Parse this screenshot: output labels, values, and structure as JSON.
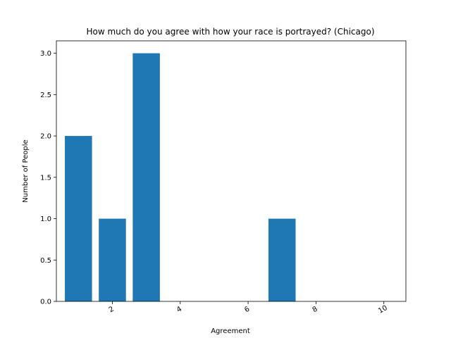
{
  "chart_data": {
    "type": "bar",
    "title": "How much do you agree with how your race is portrayed? (Chicago)",
    "xlabel": "Agreement",
    "ylabel": "Number of People",
    "x": [
      1,
      2,
      3,
      7
    ],
    "values": [
      2,
      1,
      3,
      1
    ],
    "xlim": [
      0.35,
      10.65
    ],
    "ylim": [
      0,
      3.15
    ],
    "xticks": [
      2,
      4,
      6,
      8,
      10
    ],
    "xtick_labels": [
      "2",
      "4",
      "6",
      "8",
      "10"
    ],
    "yticks": [
      0,
      0.5,
      1.0,
      1.5,
      2.0,
      2.5,
      3.0
    ],
    "ytick_labels": [
      "0.0",
      "0.5",
      "1.0",
      "1.5",
      "2.0",
      "2.5",
      "3.0"
    ],
    "bar_color": "#1f77b4",
    "grid": false,
    "legend": "none"
  }
}
